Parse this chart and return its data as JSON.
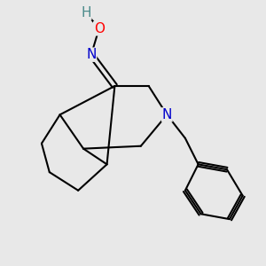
{
  "background_color": "#e8e8e8",
  "atom_colors": {
    "N": "#0000cc",
    "O": "#ff0000",
    "H": "#4a8a8a",
    "C": "#000000"
  },
  "bond_color": "#000000",
  "line_width": 1.5,
  "fig_size": [
    3.0,
    3.0
  ],
  "dpi": 100,
  "label_fontsize": 11
}
